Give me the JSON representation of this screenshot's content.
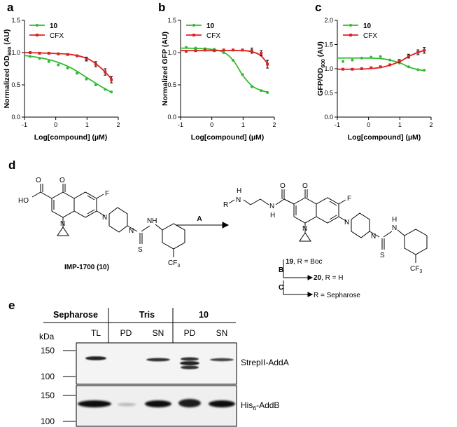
{
  "panels": {
    "a": "a",
    "b": "b",
    "c": "c",
    "d": "d",
    "e": "e"
  },
  "chart_data": [
    {
      "panel": "a",
      "type": "line",
      "xlabel": "Log[compound] (µM)",
      "ylabel": "Normalized OD600 (AU)",
      "ylabel_main": "Normalized OD",
      "ylabel_sub": "600",
      "ylabel_tail": " (AU)",
      "xlim": [
        -1,
        2
      ],
      "ylim": [
        0,
        1.5
      ],
      "xticks": [
        "-1",
        "0",
        "1",
        "2"
      ],
      "yticks": [
        "0.0",
        "0.5",
        "1.0",
        "1.5"
      ],
      "legend_position": "top-left",
      "series": [
        {
          "name": "10",
          "color": "#33bb33",
          "x": [
            -0.82,
            -0.52,
            -0.22,
            0.08,
            0.38,
            0.68,
            0.98,
            1.28,
            1.58,
            1.78
          ],
          "y": [
            0.94,
            0.91,
            0.86,
            0.81,
            0.76,
            0.68,
            0.59,
            0.5,
            0.43,
            0.39
          ],
          "fit": [
            [
              -1,
              0.955
            ],
            [
              -0.5,
              0.92
            ],
            [
              0,
              0.86
            ],
            [
              0.5,
              0.76
            ],
            [
              1,
              0.61
            ],
            [
              1.5,
              0.46
            ],
            [
              1.8,
              0.38
            ]
          ]
        },
        {
          "name": "CFX",
          "color": "#dd2222",
          "x": [
            -0.82,
            -0.52,
            -0.22,
            0.08,
            0.38,
            0.68,
            0.98,
            1.28,
            1.58,
            1.78
          ],
          "y": [
            1.0,
            0.99,
            0.99,
            0.98,
            0.97,
            0.95,
            0.9,
            0.82,
            0.7,
            0.58
          ],
          "errors": [
            0,
            0,
            0,
            0,
            0,
            0,
            0.03,
            0.04,
            0.05,
            0.05
          ],
          "fit": [
            [
              -1,
              1.0
            ],
            [
              -0.5,
              0.995
            ],
            [
              0,
              0.985
            ],
            [
              0.5,
              0.97
            ],
            [
              1,
              0.91
            ],
            [
              1.3,
              0.82
            ],
            [
              1.6,
              0.69
            ],
            [
              1.8,
              0.58
            ]
          ]
        }
      ]
    },
    {
      "panel": "b",
      "type": "line",
      "xlabel": "Log[compound] (µM)",
      "ylabel": "Normalized GFP (AU)",
      "xlim": [
        -1,
        2
      ],
      "ylim": [
        0,
        1.5
      ],
      "xticks": [
        "-1",
        "0",
        "1",
        "2"
      ],
      "yticks": [
        "0.0",
        "0.5",
        "1.0",
        "1.5"
      ],
      "legend_position": "top-left",
      "series": [
        {
          "name": "10",
          "color": "#33bb33",
          "x": [
            -0.82,
            -0.52,
            -0.22,
            0.08,
            0.38,
            0.68,
            0.98,
            1.28,
            1.58,
            1.78
          ],
          "y": [
            1.08,
            1.07,
            1.06,
            1.05,
            1.0,
            0.88,
            0.66,
            0.47,
            0.41,
            0.38
          ],
          "fit": [
            [
              -1,
              1.07
            ],
            [
              -0.5,
              1.065
            ],
            [
              0,
              1.05
            ],
            [
              0.4,
              1.0
            ],
            [
              0.7,
              0.87
            ],
            [
              1.0,
              0.64
            ],
            [
              1.3,
              0.48
            ],
            [
              1.6,
              0.41
            ],
            [
              1.8,
              0.39
            ]
          ]
        },
        {
          "name": "CFX",
          "color": "#dd2222",
          "x": [
            -0.82,
            -0.52,
            -0.22,
            0.08,
            0.38,
            0.68,
            0.98,
            1.28,
            1.58,
            1.78
          ],
          "y": [
            1.02,
            1.03,
            1.04,
            1.03,
            1.04,
            1.04,
            1.04,
            1.03,
            0.99,
            0.82
          ],
          "errors": [
            0,
            0,
            0,
            0,
            0,
            0,
            0,
            0.04,
            0.04,
            0.06
          ],
          "fit": [
            [
              -1,
              1.03
            ],
            [
              0,
              1.03
            ],
            [
              1.0,
              1.03
            ],
            [
              1.3,
              1.01
            ],
            [
              1.55,
              0.96
            ],
            [
              1.8,
              0.82
            ]
          ]
        }
      ]
    },
    {
      "panel": "c",
      "type": "line",
      "xlabel": "Log[compound] (µM)",
      "ylabel": "GFP/OD600 (AU)",
      "ylabel_main": "GFP/OD",
      "ylabel_sub": "600",
      "ylabel_tail": " (AU)",
      "xlim": [
        -1,
        2
      ],
      "ylim": [
        0,
        2.0
      ],
      "xticks": [
        "-1",
        "0",
        "1",
        "2"
      ],
      "yticks": [
        "0.0",
        "0.5",
        "1.0",
        "1.5",
        "2.0"
      ],
      "legend_position": "top-left",
      "series": [
        {
          "name": "10",
          "color": "#33bb33",
          "x": [
            -0.82,
            -0.52,
            -0.22,
            0.08,
            0.38,
            0.68,
            0.98,
            1.28,
            1.58,
            1.78
          ],
          "y": [
            1.15,
            1.18,
            1.22,
            1.24,
            1.25,
            1.18,
            1.12,
            1.04,
            0.98,
            0.97
          ],
          "fit": [
            [
              -1,
              1.22
            ],
            [
              0,
              1.22
            ],
            [
              0.5,
              1.2
            ],
            [
              1.0,
              1.12
            ],
            [
              1.3,
              1.03
            ],
            [
              1.6,
              0.98
            ],
            [
              1.8,
              0.96
            ]
          ]
        },
        {
          "name": "CFX",
          "color": "#dd2222",
          "x": [
            -0.82,
            -0.52,
            -0.22,
            0.08,
            0.38,
            0.68,
            0.98,
            1.28,
            1.58,
            1.78
          ],
          "y": [
            0.99,
            0.99,
            1.0,
            1.02,
            1.04,
            1.08,
            1.16,
            1.26,
            1.34,
            1.38
          ],
          "errors": [
            0,
            0,
            0,
            0,
            0,
            0.02,
            0.03,
            0.04,
            0.05,
            0.06
          ],
          "fit": [
            [
              -1,
              0.99
            ],
            [
              -0.5,
              0.99
            ],
            [
              0,
              1.0
            ],
            [
              0.5,
              1.04
            ],
            [
              1.0,
              1.15
            ],
            [
              1.3,
              1.26
            ],
            [
              1.6,
              1.34
            ],
            [
              1.8,
              1.38
            ]
          ]
        }
      ]
    }
  ],
  "scheme": {
    "left_compound": "IMP-1700",
    "left_compound_num": "10",
    "reagent_A": "A",
    "step_B": "B",
    "step_C": "C",
    "product_19": "19",
    "product_19_text": ", R = Boc",
    "product_20": "20",
    "product_20_text": ", R = H",
    "product_C_text": "R = Sepharose",
    "atoms": {
      "HO": "HO",
      "O": "O",
      "F": "F",
      "N": "N",
      "H": "H",
      "S": "S",
      "CF": "CF",
      "three": "3",
      "R": "R",
      "NH": "NH"
    }
  },
  "gel": {
    "groups": [
      "Sepharose",
      "Tris",
      "10"
    ],
    "lanes": [
      "TL",
      "PD",
      "SN",
      "PD",
      "SN"
    ],
    "kda_label": "kDa",
    "top_markers": [
      "150",
      "100"
    ],
    "bottom_markers": [
      "150",
      "100"
    ],
    "top_band_label": "StrepII-AddA",
    "bottom_band_label_main": "His",
    "bottom_band_label_sub": "6",
    "bottom_band_label_tail": "-AddB"
  }
}
